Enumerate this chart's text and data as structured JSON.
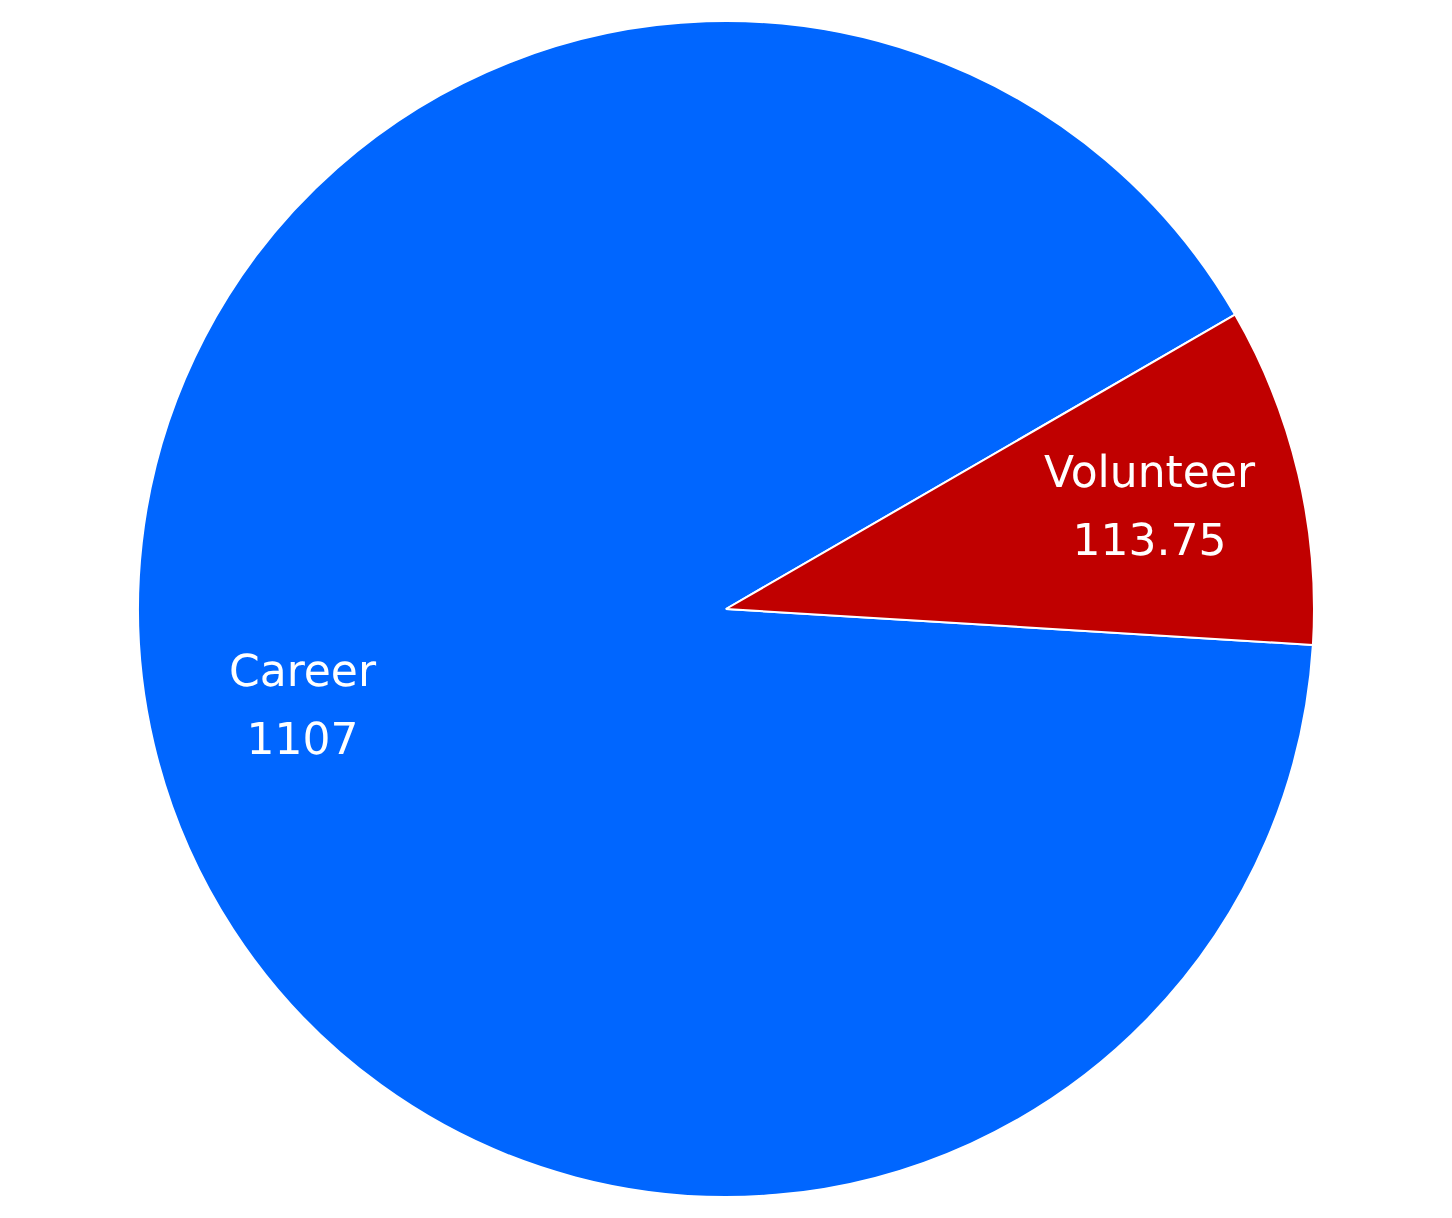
{
  "chart_data": {
    "type": "pie",
    "categories": [
      "Career",
      "Volunteer"
    ],
    "values": [
      1107,
      113.75
    ],
    "colors": [
      "#0066ff",
      "#c00000"
    ],
    "data_labels": true,
    "legend": false
  }
}
